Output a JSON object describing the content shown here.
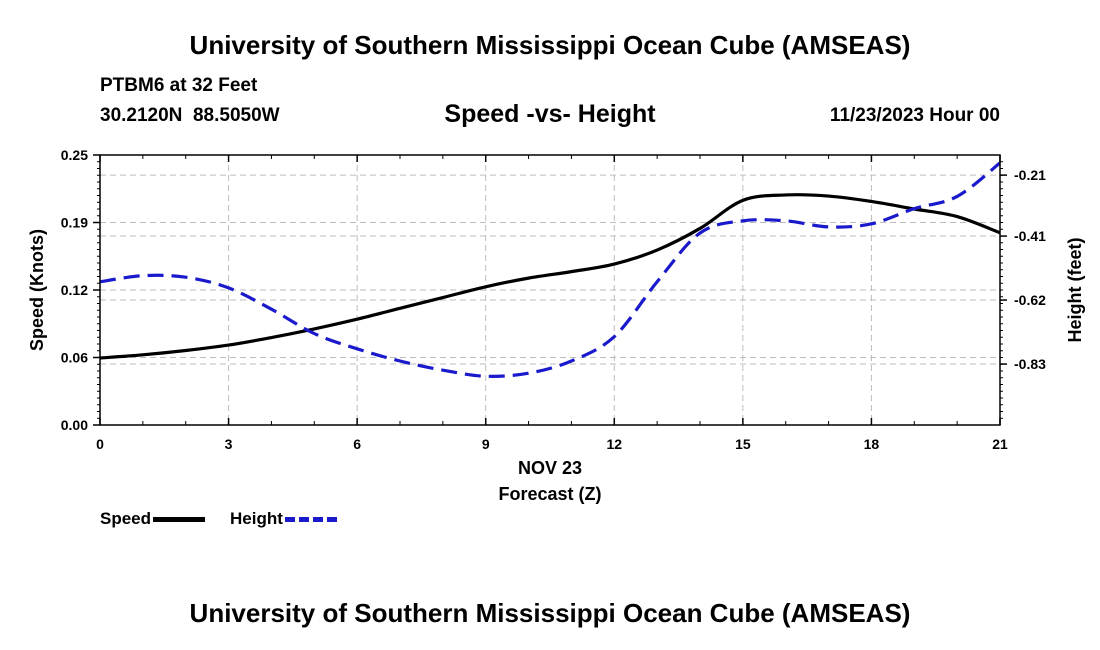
{
  "header": {
    "title": "University of Southern Mississippi Ocean Cube (AMSEAS)",
    "station": "PTBM6 at 32 Feet",
    "coords": "30.2120N  88.5050W",
    "subtitle": "Speed -vs- Height",
    "datetime": "11/23/2023 Hour 00"
  },
  "footer": {
    "title": "University of Southern Mississippi Ocean Cube (AMSEAS)"
  },
  "legend": {
    "speed_label": "Speed",
    "height_label": "Height"
  },
  "colors": {
    "speed": "#000000",
    "height": "#1a1acc",
    "grid": "#bdbdbd"
  },
  "chart_data": {
    "type": "line",
    "title": "Speed -vs- Height",
    "xlabel": "Forecast (Z)",
    "xlabel_date": "NOV 23",
    "ylabel_left": "Speed (Knots)",
    "ylabel_right": "Height (feet)",
    "xlim": [
      0,
      21
    ],
    "ylim_left": [
      0.0,
      0.25
    ],
    "ylim_right": [
      -1.03,
      -0.144
    ],
    "x_ticks": [
      0,
      3,
      6,
      9,
      12,
      15,
      18,
      21
    ],
    "x_tick_labels": [
      "0",
      "3",
      "6",
      "9",
      "12",
      "15",
      "18",
      "21"
    ],
    "y_left_ticks": [
      0.0,
      0.0625,
      0.125,
      0.1875,
      0.25
    ],
    "y_left_tick_labels": [
      "0.00",
      "0.06",
      "0.12",
      "0.19",
      "0.25"
    ],
    "y_right_ticks": [
      -0.21,
      -0.41,
      -0.62,
      -0.83
    ],
    "y_right_tick_labels": [
      "-0.21",
      "-0.41",
      "-0.62",
      "-0.83"
    ],
    "grid": true,
    "series": [
      {
        "name": "Speed",
        "axis": "left",
        "style": "solid",
        "x": [
          0,
          1,
          2,
          3,
          4,
          5,
          6,
          7,
          8,
          9,
          10,
          11,
          12,
          13,
          14,
          15,
          16,
          17,
          18,
          19,
          20,
          21
        ],
        "values": [
          0.062,
          0.065,
          0.069,
          0.074,
          0.081,
          0.089,
          0.098,
          0.108,
          0.118,
          0.128,
          0.136,
          0.142,
          0.149,
          0.162,
          0.182,
          0.208,
          0.213,
          0.212,
          0.207,
          0.2,
          0.193,
          0.178
        ]
      },
      {
        "name": "Height",
        "axis": "right",
        "style": "dashed",
        "x": [
          0,
          1,
          2,
          3,
          4,
          5,
          6,
          7,
          8,
          9,
          10,
          11,
          12,
          13,
          14,
          15,
          16,
          17,
          18,
          19,
          20,
          21
        ],
        "values": [
          -0.56,
          -0.54,
          -0.545,
          -0.58,
          -0.65,
          -0.73,
          -0.78,
          -0.82,
          -0.85,
          -0.87,
          -0.86,
          -0.82,
          -0.74,
          -0.56,
          -0.4,
          -0.36,
          -0.36,
          -0.38,
          -0.37,
          -0.32,
          -0.28,
          -0.17
        ]
      }
    ]
  }
}
